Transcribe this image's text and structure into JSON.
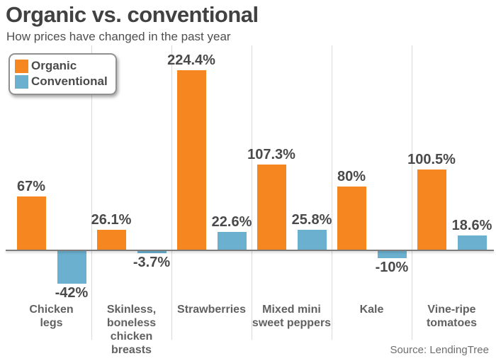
{
  "chart": {
    "title": "Organic vs. conventional",
    "subtitle": "How prices have changed in the past year",
    "source": "Source: LendingTree",
    "legend": [
      {
        "label": "Organic",
        "color": "#F6861F"
      },
      {
        "label": "Conventional",
        "color": "#6BB0CF"
      }
    ]
  },
  "chart_data": {
    "type": "bar",
    "title": "Organic vs. conventional",
    "subtitle": "How prices have changed in the past year",
    "xlabel": "",
    "ylabel": "",
    "categories": [
      "Chicken legs",
      "Skinless, boneless chicken breasts",
      "Strawberries",
      "Mixed mini sweet peppers",
      "Kale",
      "Vine-ripe tomatoes"
    ],
    "category_display_lines": [
      "Chicken\nlegs",
      "Skinless,\nboneless\nchicken\nbreasts",
      "Strawberries",
      "Mixed mini\nsweet peppers",
      "Kale",
      "Vine-ripe\ntomatoes"
    ],
    "series": [
      {
        "name": "Organic",
        "color": "#F6861F",
        "values": [
          67,
          26.1,
          224.4,
          107.3,
          80,
          100.5
        ],
        "labels": [
          "67%",
          "26.1%",
          "224.4%",
          "107.3%",
          "80%",
          "100.5%"
        ]
      },
      {
        "name": "Conventional",
        "color": "#6BB0CF",
        "values": [
          -42,
          -3.7,
          22.6,
          25.8,
          -10,
          18.6
        ],
        "labels": [
          "-42%",
          "-3.7%",
          "22.6%",
          "25.8%",
          "-10%",
          "18.6%"
        ]
      }
    ],
    "ylim": [
      -60,
      255
    ],
    "grid": "vertical-category-separators",
    "legend_position": "top-left",
    "source": "Source: LendingTree"
  }
}
